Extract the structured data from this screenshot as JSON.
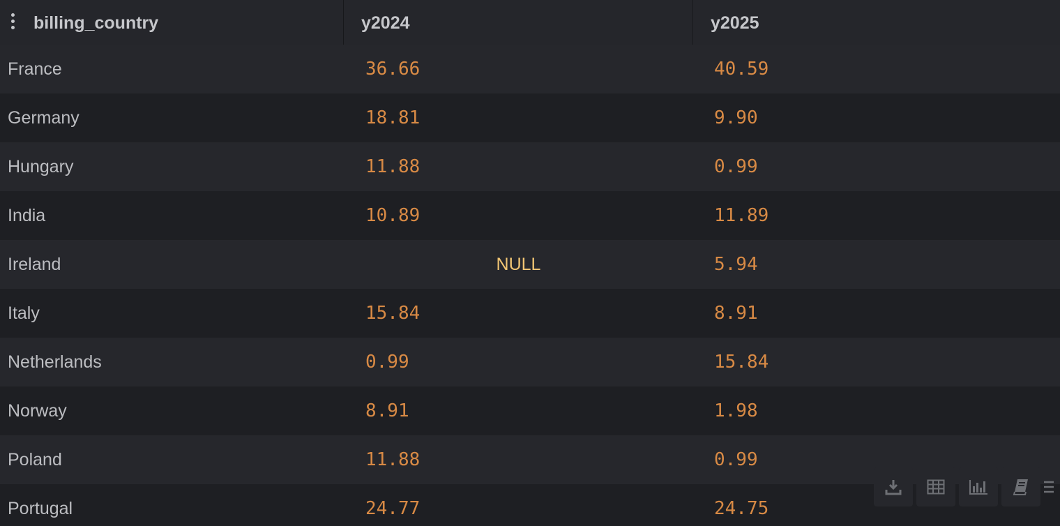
{
  "columns": [
    "billing_country",
    "y2024",
    "y2025"
  ],
  "rows": [
    {
      "country": "France",
      "y2024": "36.66",
      "y2025": "40.59"
    },
    {
      "country": "Germany",
      "y2024": "18.81",
      "y2025": "9.90"
    },
    {
      "country": "Hungary",
      "y2024": "11.88",
      "y2025": "0.99"
    },
    {
      "country": "India",
      "y2024": "10.89",
      "y2025": "11.89"
    },
    {
      "country": "Ireland",
      "y2024": "NULL",
      "y2025": "5.94"
    },
    {
      "country": "Italy",
      "y2024": "15.84",
      "y2025": "8.91"
    },
    {
      "country": "Netherlands",
      "y2024": "0.99",
      "y2025": "15.84"
    },
    {
      "country": "Norway",
      "y2024": "8.91",
      "y2025": "1.98"
    },
    {
      "country": "Poland",
      "y2024": "11.88",
      "y2025": "0.99"
    },
    {
      "country": "Portugal",
      "y2024": "24.77",
      "y2025": "24.75"
    }
  ],
  "toolbar": {
    "icons": [
      "download-icon",
      "table-icon",
      "bar-chart-icon",
      "notebook-icon",
      "menu-icon"
    ]
  },
  "colors": {
    "background": "#1e1f23",
    "stripe": "#26272c",
    "header": "#25262b",
    "number": "#d88a45",
    "null": "#f2c674",
    "text": "#bcbdc1"
  }
}
